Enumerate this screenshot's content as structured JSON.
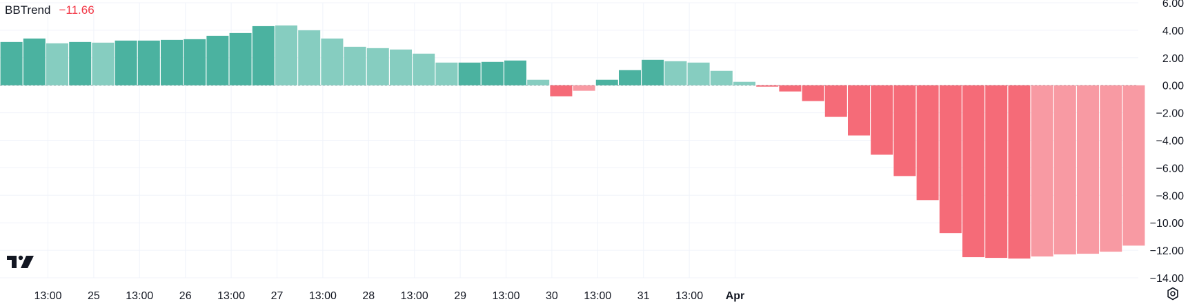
{
  "indicator": {
    "name": "BBTrend",
    "value": "−11.66"
  },
  "colors": {
    "positive_strong": "#4bb2a0",
    "positive_light": "#86cdc0",
    "negative_strong": "#f56b78",
    "negative_light": "#f89aa3",
    "grid": "#f0f3fa",
    "zero_line": "#9598a1"
  },
  "icons": [
    "tradingview-logo-icon",
    "settings-gear-icon"
  ],
  "chart_data": {
    "type": "bar",
    "title": "",
    "xlabel": "",
    "ylabel": "",
    "ylim": [
      -14,
      6
    ],
    "grid": true,
    "y_ticks": [
      "6.00",
      "4.00",
      "2.00",
      "0.00",
      "−2.00",
      "−4.00",
      "−6.00",
      "−8.00",
      "−10.00",
      "−12.00",
      "−14.00"
    ],
    "x_ticks": [
      "13:00",
      "25",
      "13:00",
      "26",
      "13:00",
      "27",
      "13:00",
      "28",
      "13:00",
      "29",
      "13:00",
      "30",
      "13:00",
      "31",
      "13:00",
      "Apr"
    ],
    "bar_interval_hours": 6,
    "series": [
      {
        "values": [
          3.15,
          3.4,
          3.05,
          3.15,
          3.1,
          3.25,
          3.25,
          3.3,
          3.35,
          3.6,
          3.8,
          4.3,
          4.35,
          4.0,
          3.4,
          2.8,
          2.7,
          2.6,
          2.3,
          1.65,
          1.65,
          1.7,
          1.8,
          0.4,
          -0.8,
          -0.4,
          0.4,
          1.1,
          1.85,
          1.75,
          1.65,
          1.05,
          0.25,
          -0.1,
          -0.45,
          -1.15,
          -2.3,
          -3.65,
          -5.05,
          -6.6,
          -8.35,
          -10.75,
          -12.5,
          -12.55,
          -12.6,
          -12.45,
          -12.3,
          -12.25,
          -12.1,
          -11.66
        ],
        "shades": [
          "strong",
          "strong",
          "light",
          "strong",
          "light",
          "strong",
          "strong",
          "strong",
          "strong",
          "strong",
          "strong",
          "strong",
          "light",
          "light",
          "light",
          "light",
          "light",
          "light",
          "light",
          "light",
          "strong",
          "strong",
          "strong",
          "light",
          "strong",
          "light",
          "strong",
          "strong",
          "strong",
          "light",
          "light",
          "light",
          "light",
          "strong",
          "strong",
          "strong",
          "strong",
          "strong",
          "strong",
          "strong",
          "strong",
          "strong",
          "strong",
          "strong",
          "strong",
          "light",
          "light",
          "light",
          "light",
          "light"
        ]
      }
    ]
  }
}
